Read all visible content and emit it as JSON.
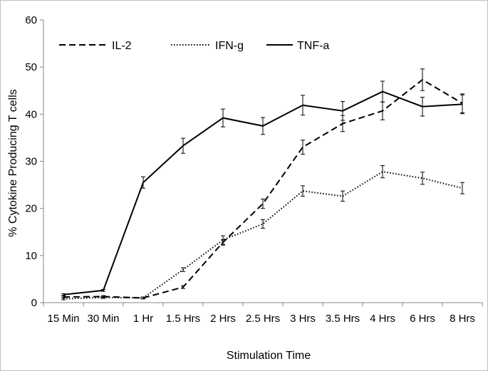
{
  "chart_data": {
    "type": "line",
    "title": "",
    "xlabel": "Stimulation Time",
    "ylabel": "% Cytokine Producing T cells",
    "ylim": [
      0,
      60
    ],
    "yticks": [
      0,
      10,
      20,
      30,
      40,
      50,
      60
    ],
    "grid": false,
    "legend_position": "top-left",
    "categories": [
      "15 Min",
      "30 Min",
      "1 Hr",
      "1.5 Hrs",
      "2 Hrs",
      "2.5 Hrs",
      "3 Hrs",
      "3.5 Hrs",
      "4 Hrs",
      "6 Hrs",
      "8 Hrs"
    ],
    "series": [
      {
        "name": "IL-2",
        "style": "dashed",
        "color": "#000000",
        "values": [
          1.2,
          1.3,
          1.0,
          3.3,
          12.8,
          21.0,
          33.0,
          38.0,
          40.7,
          47.3,
          42.3
        ],
        "errors": [
          0.2,
          0.2,
          0.2,
          0.3,
          0.6,
          1.0,
          1.5,
          1.7,
          1.9,
          2.3,
          2.0
        ]
      },
      {
        "name": "IFN-g",
        "style": "dotted",
        "color": "#000000",
        "values": [
          0.8,
          1.1,
          1.0,
          7.0,
          13.3,
          16.7,
          23.7,
          22.6,
          27.8,
          26.4,
          24.3
        ],
        "errors": [
          0.2,
          0.2,
          0.2,
          0.4,
          0.9,
          0.9,
          1.1,
          1.1,
          1.3,
          1.3,
          1.2
        ]
      },
      {
        "name": "TNF-a",
        "style": "solid",
        "color": "#000000",
        "values": [
          1.7,
          2.6,
          25.5,
          33.3,
          39.2,
          37.5,
          41.9,
          40.7,
          44.8,
          41.6,
          42.1
        ],
        "errors": [
          0.2,
          0.2,
          1.2,
          1.6,
          1.9,
          1.8,
          2.1,
          2.0,
          2.2,
          2.0,
          2.0
        ]
      }
    ]
  }
}
